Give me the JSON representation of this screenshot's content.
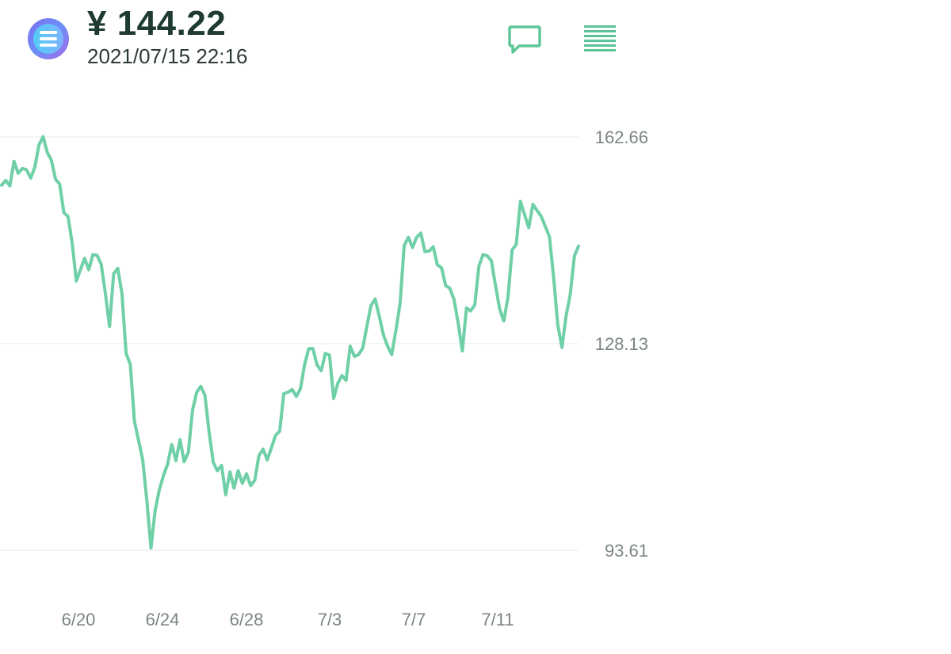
{
  "header": {
    "price": "¥ 144.22",
    "timestamp": "2021/07/15 22:16",
    "coin_icon": "enjin-coin-logo",
    "comment_icon": "comment-icon",
    "menu_icon": "menu-icon"
  },
  "colors": {
    "line": "#6fcfa7",
    "accent": "#5cc598",
    "grid": "#eef2f1",
    "tick_text": "#7a8683",
    "price_text": "#1e3a33"
  },
  "chart_data": {
    "type": "line",
    "title": "",
    "xlabel": "",
    "ylabel": "",
    "ylim": [
      93.61,
      162.66
    ],
    "y_ticks": [
      "162.66",
      "128.13",
      "93.61"
    ],
    "x_ticks": [
      "6/20",
      "6/24",
      "6/28",
      "7/3",
      "7/7",
      "7/11"
    ],
    "grid": "horizontal",
    "series": [
      {
        "values": [
          154.6,
          155.4,
          154.5,
          158.6,
          156.6,
          157.4,
          157.2,
          155.8,
          157.6,
          161.3,
          162.7,
          160.1,
          158.8,
          155.6,
          154.8,
          150.0,
          149.4,
          145.0,
          138.6,
          140.5,
          142.4,
          140.5,
          143.0,
          142.9,
          141.4,
          136.6,
          131.0,
          139.8,
          140.7,
          136.5,
          126.5,
          124.7,
          115.2,
          112.0,
          108.7,
          101.9,
          94.0,
          100.3,
          103.7,
          106.1,
          108.0,
          111.3,
          108.6,
          112.1,
          108.4,
          110.0,
          117.0,
          120.0,
          121.0,
          119.5,
          113.3,
          108.3,
          106.9,
          107.8,
          102.9,
          106.7,
          104.0,
          106.9,
          104.8,
          106.4,
          104.4,
          105.3,
          109.4,
          110.5,
          108.7,
          110.7,
          112.8,
          113.5,
          119.8,
          120.0,
          120.5,
          119.3,
          120.6,
          124.6,
          127.3,
          127.3,
          124.6,
          123.6,
          126.5,
          126.2,
          119.0,
          121.5,
          122.8,
          122.0,
          127.7,
          126.0,
          126.3,
          127.4,
          131.0,
          134.5,
          135.6,
          132.7,
          129.6,
          127.7,
          126.3,
          130.4,
          134.8,
          144.5,
          145.9,
          144.2,
          145.9,
          146.6,
          143.5,
          143.6,
          144.3,
          141.3,
          140.8,
          137.8,
          137.4,
          135.5,
          131.6,
          126.9,
          134.1,
          133.6,
          134.6,
          141.1,
          143.0,
          142.8,
          142.0,
          137.8,
          133.9,
          131.9,
          135.9,
          143.8,
          144.7,
          151.9,
          149.7,
          147.5,
          151.4,
          150.4,
          149.4,
          147.7,
          146.0,
          139.2,
          131.3,
          127.5,
          132.8,
          136.3,
          142.8,
          144.4
        ]
      }
    ]
  }
}
